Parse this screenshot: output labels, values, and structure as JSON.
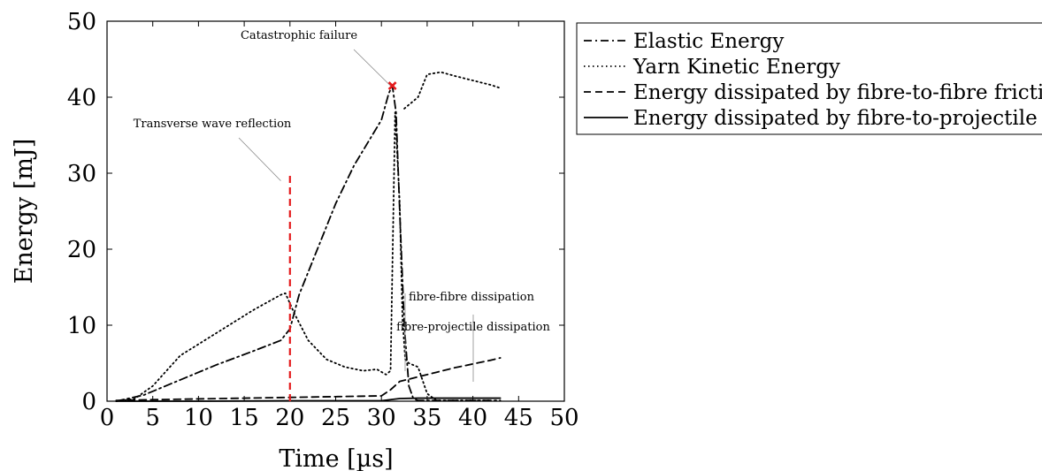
{
  "chart_data": {
    "type": "line",
    "xlabel": "Time [µs]",
    "ylabel": "Energy [mJ]",
    "xlim": [
      0,
      50
    ],
    "ylim": [
      0,
      50
    ],
    "xticks": [
      0,
      5,
      10,
      15,
      20,
      25,
      30,
      35,
      40,
      45,
      50
    ],
    "yticks": [
      0,
      10,
      20,
      30,
      40,
      50
    ],
    "grid": false,
    "legend_position": "outside-right",
    "series": [
      {
        "name": "Elastic Energy",
        "style": "dashdot",
        "color": "#000000",
        "x": [
          1,
          4,
          8,
          12,
          16,
          19,
          20,
          21,
          23,
          25,
          27,
          29,
          30,
          30.8,
          31.2,
          31.6,
          32,
          32.5,
          33,
          33.5,
          34,
          40,
          43
        ],
        "y": [
          0,
          0.8,
          2.8,
          4.8,
          6.6,
          8,
          9.5,
          14,
          20,
          26,
          31,
          35,
          37,
          40.5,
          41.5,
          38,
          25,
          10,
          2,
          0.3,
          0.1,
          0.1,
          0.1
        ]
      },
      {
        "name": "Yarn Kinetic Energy",
        "style": "dotted",
        "color": "#000000",
        "x": [
          1,
          3,
          5,
          8,
          12,
          16,
          19,
          19.5,
          20.5,
          22,
          24,
          26,
          28,
          29.5,
          30.5,
          31,
          31.5,
          32,
          32.3,
          32.6,
          33,
          34,
          35,
          36,
          38,
          40,
          42
        ],
        "y": [
          0,
          0.3,
          2,
          6,
          9,
          12,
          14,
          14.2,
          11.5,
          8,
          5.5,
          4.5,
          4,
          4.2,
          3.5,
          4,
          38,
          26,
          11,
          5.5,
          5,
          4.5,
          1,
          0.1,
          0.1,
          0.1,
          0.1
        ]
      },
      {
        "name": "Energy dissipated by fibre-to-fibre friction",
        "style": "dashed",
        "color": "#000000",
        "x": [
          1,
          5,
          10,
          15,
          20,
          25,
          30,
          31,
          32,
          34,
          36,
          38,
          40,
          42,
          43
        ],
        "y": [
          0.1,
          0.2,
          0.3,
          0.4,
          0.5,
          0.6,
          0.7,
          1.5,
          2.6,
          3.2,
          3.8,
          4.4,
          4.9,
          5.4,
          5.7
        ]
      },
      {
        "name": "Energy dissipated by fibre-to-projectile friction",
        "style": "solid",
        "color": "#000000",
        "x": [
          1,
          10,
          20,
          30,
          31,
          32,
          34,
          40,
          43
        ],
        "y": [
          0,
          0,
          0.05,
          0.05,
          0.2,
          0.35,
          0.4,
          0.4,
          0.4
        ]
      },
      {
        "name": "",
        "style": "dotted-extension",
        "color": "#000000",
        "x": [
          32.5,
          33,
          34,
          35,
          36.5,
          38,
          40,
          42,
          43
        ],
        "y": [
          38.5,
          39,
          40,
          43,
          43.3,
          42.8,
          42.2,
          41.6,
          41.2
        ]
      }
    ],
    "annotations": [
      {
        "text": "Catastrophic failure",
        "x": 31,
        "y": 41.5
      },
      {
        "text": "Transverse wave reflection",
        "x": 19,
        "y": 29
      },
      {
        "text": "fibre-fibre dissipation",
        "x": 40,
        "y": 11
      },
      {
        "text": "fibre-projectile dissipation",
        "x": 40,
        "y": 3
      }
    ],
    "markers": [
      {
        "x": 31.2,
        "y": 41.5,
        "color": "#e41a1c",
        "shape": "cross"
      }
    ],
    "vlines": [
      {
        "x": 20,
        "y_top": 30,
        "color": "#e41a1c",
        "style": "dashed"
      }
    ]
  }
}
